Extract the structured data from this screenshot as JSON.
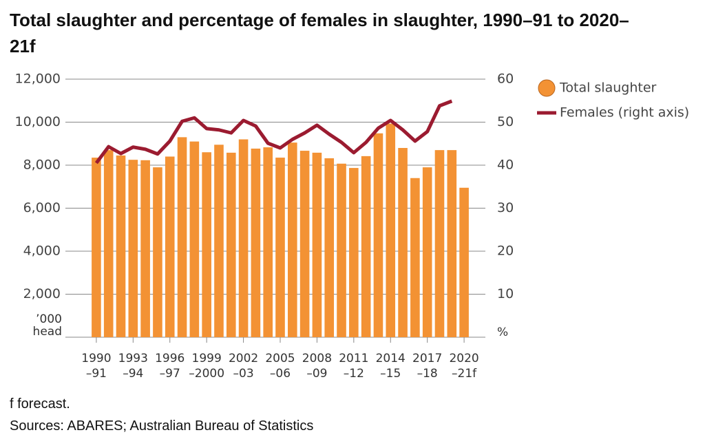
{
  "chart_data": {
    "type": "bar",
    "title": "Total slaughter and percentage of females in slaughter, 1990–91 to 2020–21f",
    "categories": [
      "1990\n–91",
      null,
      null,
      "1993\n–94",
      null,
      null,
      "1996\n–97",
      null,
      null,
      "1999\n–2000",
      null,
      null,
      "2002\n–03",
      null,
      null,
      "2005\n–06",
      null,
      null,
      "2008\n–09",
      null,
      null,
      "2011\n–12",
      null,
      null,
      "2014\n–15",
      null,
      null,
      "2017\n–18",
      null,
      null,
      "2020\n–21f"
    ],
    "series": [
      {
        "name": "Total slaughter",
        "type": "bar",
        "color": "#f39234",
        "values": [
          8350,
          8700,
          8450,
          8250,
          8230,
          7900,
          8400,
          9300,
          9100,
          8600,
          8950,
          8580,
          9200,
          8770,
          8830,
          8350,
          9050,
          8670,
          8580,
          8320,
          8070,
          7870,
          8420,
          9480,
          9930,
          8800,
          7400,
          7900,
          8700,
          8700,
          6950
        ]
      },
      {
        "name": "Females (right axis)",
        "type": "line",
        "axis": "y2",
        "color": "#9b1b30",
        "values": [
          40.5,
          44.3,
          42.7,
          44.2,
          43.7,
          42.6,
          45.6,
          50.2,
          51,
          48.5,
          48.2,
          47.5,
          50.4,
          49.1,
          45.1,
          44,
          46,
          47.5,
          49.3,
          47.2,
          45.3,
          42.9,
          45.3,
          48.6,
          50.4,
          48.2,
          45.6,
          47.8,
          53.8,
          54.9,
          null
        ]
      }
    ],
    "ylabel": "’000\nhead",
    "y2label": "%",
    "ylim": [
      0,
      12000
    ],
    "yticks": [
      {
        "value": 2000,
        "label": "2,000"
      },
      {
        "value": 4000,
        "label": "4,000"
      },
      {
        "value": 6000,
        "label": "6,000"
      },
      {
        "value": 8000,
        "label": "8,000"
      },
      {
        "value": 10000,
        "label": "10,000"
      },
      {
        "value": 12000,
        "label": "12,000"
      }
    ],
    "y2lim": [
      0,
      60
    ],
    "y2ticks": [
      10,
      20,
      30,
      40,
      50,
      60
    ],
    "grid": true,
    "legend": "upper right",
    "notes": [
      "f forecast.",
      "Sources: ABARES; Australian Bureau of Statistics"
    ]
  }
}
